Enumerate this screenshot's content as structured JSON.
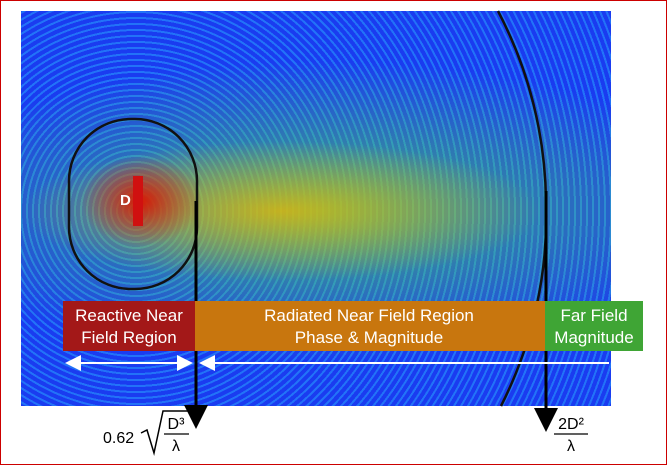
{
  "image_label": "D",
  "regions": [
    {
      "lines": [
        "Reactive Near",
        "Field Region"
      ]
    },
    {
      "lines": [
        "Radiated Near Field Region",
        "Phase & Magnitude"
      ]
    },
    {
      "lines": [
        "Far Field",
        "Magnitude"
      ]
    }
  ],
  "boundaries": [
    {
      "coefficient": "0.62",
      "numerator": "D³",
      "denominator": "λ"
    },
    {
      "numerator": "2D²",
      "denominator": "λ"
    }
  ]
}
